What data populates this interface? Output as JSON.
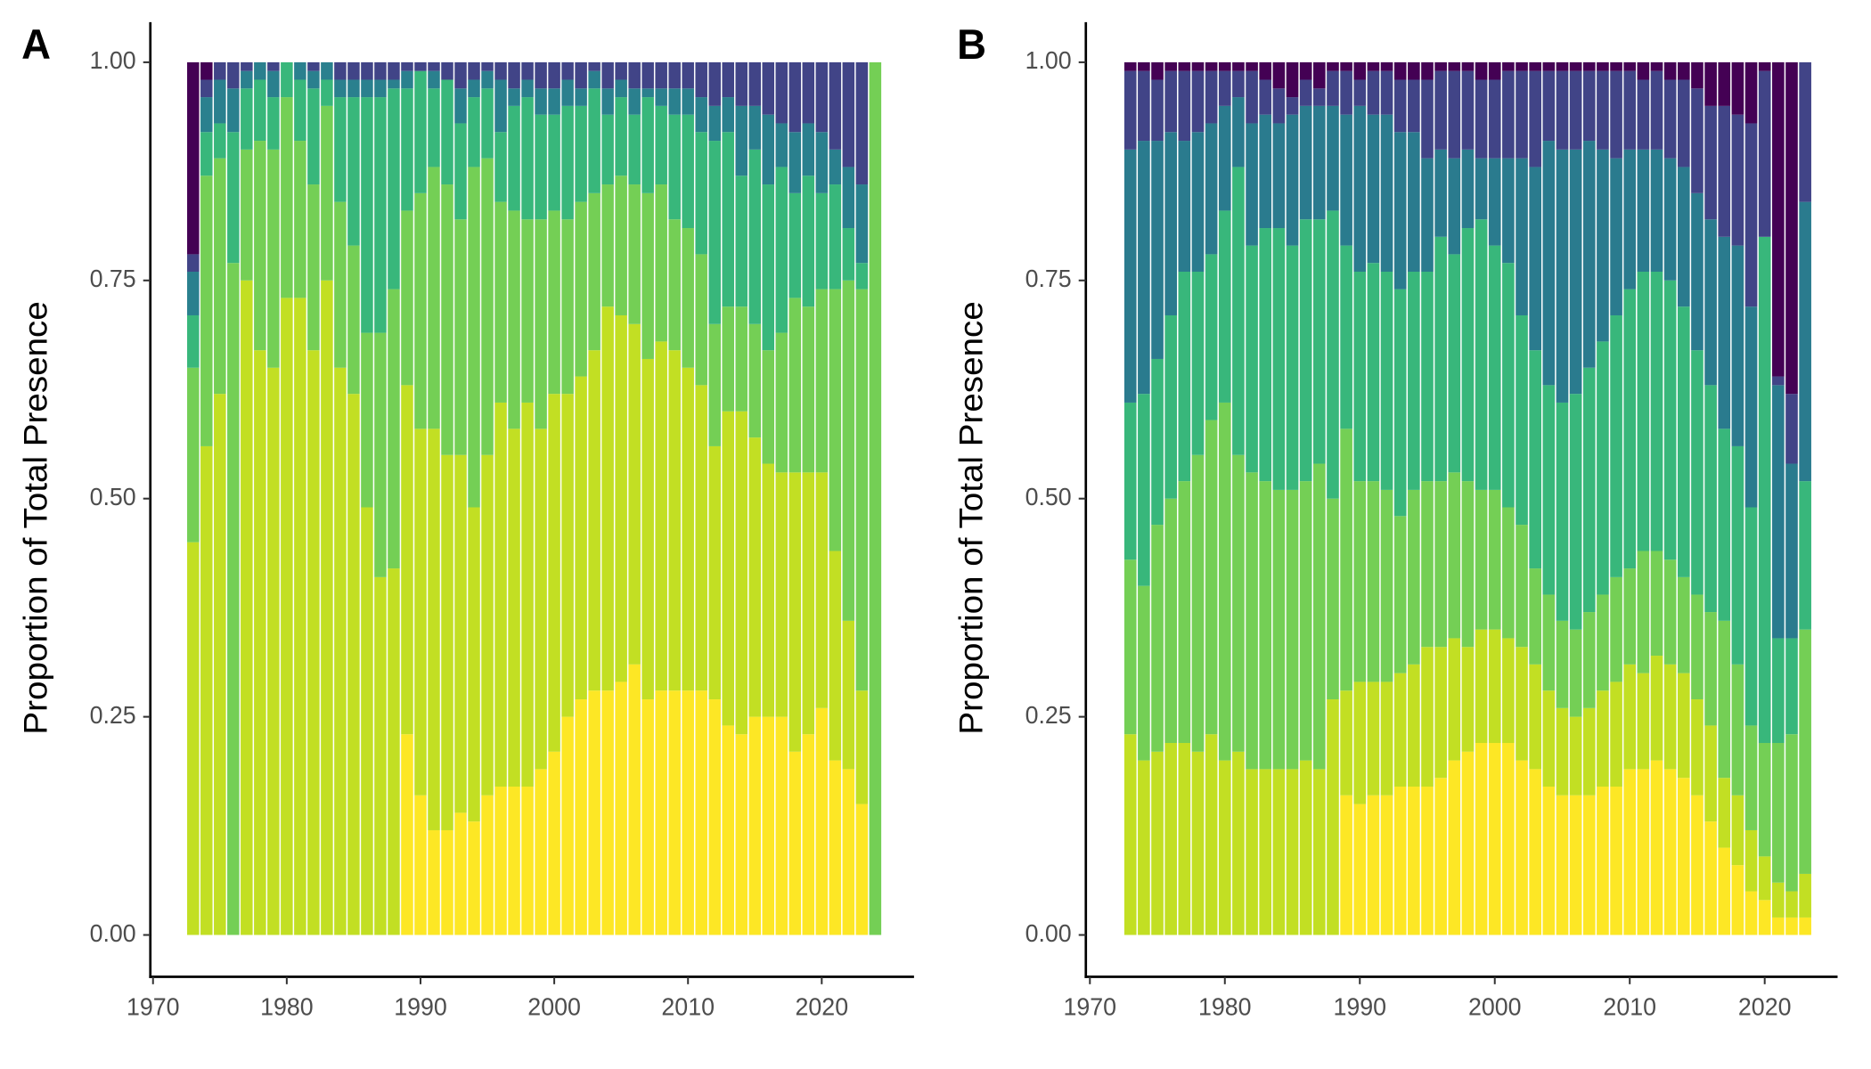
{
  "chart_data": [
    {
      "type": "bar",
      "stacked": true,
      "panel_label": "A",
      "ylabel": "Proportion of Total Presence",
      "x": [
        1973,
        1974,
        1975,
        1976,
        1977,
        1978,
        1979,
        1980,
        1981,
        1982,
        1983,
        1984,
        1985,
        1986,
        1987,
        1988,
        1989,
        1990,
        1991,
        1992,
        1993,
        1994,
        1995,
        1996,
        1997,
        1998,
        1999,
        2000,
        2001,
        2002,
        2003,
        2004,
        2005,
        2006,
        2007,
        2008,
        2009,
        2010,
        2011,
        2012,
        2013,
        2014,
        2015,
        2016,
        2017,
        2018,
        2019,
        2020,
        2021,
        2022,
        2023,
        2024
      ],
      "series": [
        {
          "color": "#FDE725",
          "values": [
            0,
            0,
            0,
            0,
            0,
            0,
            0,
            0,
            0,
            0,
            0,
            0,
            0,
            0,
            0,
            0,
            0.23,
            0.16,
            0.12,
            0.12,
            0.14,
            0.13,
            0.16,
            0.17,
            0.17,
            0.17,
            0.19,
            0.21,
            0.25,
            0.27,
            0.28,
            0.28,
            0.29,
            0.31,
            0.27,
            0.28,
            0.28,
            0.28,
            0.28,
            0.27,
            0.24,
            0.23,
            0.25,
            0.25,
            0.25,
            0.21,
            0.23,
            0.26,
            0.2,
            0.19,
            0.15,
            0
          ]
        },
        {
          "color": "#C2DF23",
          "values": [
            0.45,
            0.56,
            0.62,
            0,
            0.75,
            0.67,
            0.65,
            0.73,
            0.73,
            0.67,
            0.75,
            0.65,
            0.62,
            0.49,
            0.41,
            0.42,
            0.4,
            0.42,
            0.46,
            0.43,
            0.41,
            0.36,
            0.39,
            0.44,
            0.41,
            0.44,
            0.39,
            0.41,
            0.37,
            0.37,
            0.39,
            0.44,
            0.42,
            0.39,
            0.39,
            0.4,
            0.39,
            0.37,
            0.35,
            0.29,
            0.36,
            0.37,
            0.32,
            0.29,
            0.28,
            0.32,
            0.3,
            0.27,
            0.24,
            0.17,
            0.13,
            0
          ]
        },
        {
          "color": "#74CF55",
          "values": [
            0.2,
            0.31,
            0.27,
            0.77,
            0.15,
            0.24,
            0.25,
            0.23,
            0.18,
            0.19,
            0.2,
            0.19,
            0.17,
            0.2,
            0.28,
            0.32,
            0.2,
            0.27,
            0.3,
            0.31,
            0.27,
            0.39,
            0.34,
            0.23,
            0.25,
            0.21,
            0.24,
            0.21,
            0.2,
            0.2,
            0.18,
            0.14,
            0.16,
            0.16,
            0.19,
            0.18,
            0.15,
            0.16,
            0.15,
            0.14,
            0.12,
            0.12,
            0.13,
            0.13,
            0.16,
            0.2,
            0.19,
            0.21,
            0.3,
            0.39,
            0.46,
            1
          ]
        },
        {
          "color": "#38B77B",
          "values": [
            0.06,
            0.05,
            0.04,
            0.15,
            0.07,
            0.07,
            0.06,
            0.04,
            0.07,
            0.11,
            0.03,
            0.12,
            0.17,
            0.27,
            0.27,
            0.23,
            0.14,
            0.14,
            0.09,
            0.12,
            0.11,
            0.08,
            0.08,
            0.08,
            0.12,
            0.14,
            0.12,
            0.11,
            0.13,
            0.11,
            0.12,
            0.08,
            0.09,
            0.08,
            0.11,
            0.09,
            0.12,
            0.13,
            0.14,
            0.21,
            0.2,
            0.15,
            0.2,
            0.19,
            0.19,
            0.12,
            0.15,
            0.11,
            0.12,
            0.06,
            0.03,
            0
          ]
        },
        {
          "color": "#2A808E",
          "values": [
            0.05,
            0.04,
            0.05,
            0.05,
            0.02,
            0.02,
            0.03,
            0,
            0.02,
            0.02,
            0.02,
            0.02,
            0.02,
            0.02,
            0.02,
            0.01,
            0.02,
            0,
            0.02,
            0,
            0.04,
            0.02,
            0.02,
            0.06,
            0.02,
            0.02,
            0.03,
            0.03,
            0.03,
            0.02,
            0.02,
            0.03,
            0.02,
            0.03,
            0.01,
            0.02,
            0.03,
            0.03,
            0.04,
            0.04,
            0.04,
            0.08,
            0.05,
            0.08,
            0.05,
            0.07,
            0.06,
            0.07,
            0.04,
            0.07,
            0.09,
            0
          ]
        },
        {
          "color": "#414487",
          "values": [
            0.02,
            0.02,
            0.02,
            0.03,
            0.01,
            0,
            0.01,
            0,
            0,
            0.01,
            0,
            0.02,
            0.02,
            0.02,
            0.02,
            0.02,
            0.01,
            0.01,
            0.01,
            0.02,
            0.03,
            0.02,
            0.01,
            0.02,
            0.03,
            0.02,
            0.03,
            0.03,
            0.02,
            0.03,
            0.01,
            0.03,
            0.02,
            0.03,
            0.03,
            0.03,
            0.03,
            0.03,
            0.04,
            0.05,
            0.04,
            0.05,
            0.05,
            0.06,
            0.07,
            0.08,
            0.07,
            0.08,
            0.1,
            0.12,
            0.14,
            0
          ]
        },
        {
          "color": "#440154",
          "values": [
            0.22,
            0.02,
            0,
            0,
            0,
            0,
            0,
            0,
            0,
            0,
            0,
            0,
            0,
            0,
            0,
            0,
            0,
            0,
            0,
            0,
            0,
            0,
            0,
            0,
            0,
            0,
            0,
            0,
            0,
            0,
            0,
            0,
            0,
            0,
            0,
            0,
            0,
            0,
            0,
            0,
            0,
            0,
            0,
            0,
            0,
            0,
            0,
            0,
            0,
            0,
            0,
            0
          ]
        }
      ],
      "xlim": [
        1969.8,
        2026.9
      ],
      "xticks": [
        1970,
        1980,
        1990,
        2000,
        2010,
        2020
      ],
      "ylim": [
        -0.048,
        1.046
      ],
      "yticks": [
        {
          "value": 0,
          "label": "0.00"
        },
        {
          "value": 0.25,
          "label": "0.25"
        },
        {
          "value": 0.5,
          "label": "0.50"
        },
        {
          "value": 0.75,
          "label": "0.75"
        },
        {
          "value": 1,
          "label": "1.00"
        }
      ]
    },
    {
      "type": "bar",
      "stacked": true,
      "panel_label": "B",
      "ylabel": "Proportion of Total Presence",
      "x": [
        1973,
        1974,
        1975,
        1976,
        1977,
        1978,
        1979,
        1980,
        1981,
        1982,
        1983,
        1984,
        1985,
        1986,
        1987,
        1988,
        1989,
        1990,
        1991,
        1992,
        1993,
        1994,
        1995,
        1996,
        1997,
        1998,
        1999,
        2000,
        2001,
        2002,
        2003,
        2004,
        2005,
        2006,
        2007,
        2008,
        2009,
        2010,
        2011,
        2012,
        2013,
        2014,
        2015,
        2016,
        2017,
        2018,
        2019,
        2020,
        2021,
        2022,
        2023
      ],
      "series": [
        {
          "color": "#FDE725",
          "values": [
            0,
            0,
            0,
            0,
            0,
            0,
            0,
            0,
            0,
            0,
            0,
            0,
            0,
            0,
            0,
            0,
            0.16,
            0.15,
            0.16,
            0.16,
            0.17,
            0.17,
            0.17,
            0.18,
            0.2,
            0.21,
            0.22,
            0.22,
            0.22,
            0.2,
            0.19,
            0.17,
            0.16,
            0.16,
            0.16,
            0.17,
            0.17,
            0.19,
            0.19,
            0.2,
            0.19,
            0.18,
            0.16,
            0.13,
            0.1,
            0.08,
            0.05,
            0.04,
            0.02,
            0.02,
            0.02
          ]
        },
        {
          "color": "#C2DF23",
          "values": [
            0.23,
            0.2,
            0.21,
            0.22,
            0.22,
            0.21,
            0.23,
            0.2,
            0.21,
            0.19,
            0.19,
            0.19,
            0.19,
            0.2,
            0.19,
            0.27,
            0.12,
            0.14,
            0.13,
            0.13,
            0.13,
            0.14,
            0.16,
            0.15,
            0.14,
            0.12,
            0.13,
            0.13,
            0.12,
            0.13,
            0.12,
            0.11,
            0.1,
            0.09,
            0.1,
            0.11,
            0.12,
            0.12,
            0.11,
            0.12,
            0.12,
            0.12,
            0.11,
            0.11,
            0.08,
            0.08,
            0.07,
            0.05,
            0.04,
            0.03,
            0.05
          ]
        },
        {
          "color": "#74CF55",
          "values": [
            0.2,
            0.2,
            0.26,
            0.28,
            0.3,
            0.34,
            0.36,
            0.41,
            0.34,
            0.34,
            0.33,
            0.32,
            0.32,
            0.32,
            0.35,
            0.23,
            0.3,
            0.23,
            0.23,
            0.22,
            0.18,
            0.2,
            0.19,
            0.19,
            0.19,
            0.19,
            0.16,
            0.16,
            0.15,
            0.14,
            0.11,
            0.11,
            0.1,
            0.1,
            0.11,
            0.11,
            0.12,
            0.11,
            0.14,
            0.12,
            0.12,
            0.11,
            0.12,
            0.13,
            0.18,
            0.15,
            0.12,
            0.13,
            0.16,
            0.18,
            0.28
          ]
        },
        {
          "color": "#38B77B",
          "values": [
            0.18,
            0.22,
            0.19,
            0.21,
            0.24,
            0.21,
            0.19,
            0.22,
            0.33,
            0.26,
            0.29,
            0.3,
            0.28,
            0.3,
            0.28,
            0.33,
            0.21,
            0.24,
            0.25,
            0.25,
            0.26,
            0.25,
            0.24,
            0.28,
            0.25,
            0.29,
            0.31,
            0.28,
            0.28,
            0.24,
            0.25,
            0.24,
            0.25,
            0.27,
            0.28,
            0.29,
            0.3,
            0.32,
            0.32,
            0.32,
            0.32,
            0.31,
            0.28,
            0.26,
            0.22,
            0.25,
            0.25,
            0.58,
            0.12,
            0.11,
            0.17
          ]
        },
        {
          "color": "#2A7B8E",
          "values": [
            0.29,
            0.29,
            0.25,
            0.21,
            0.15,
            0.16,
            0.15,
            0.12,
            0.08,
            0.14,
            0.13,
            0.12,
            0.15,
            0.13,
            0.13,
            0.12,
            0.15,
            0.19,
            0.17,
            0.18,
            0.18,
            0.16,
            0.13,
            0.1,
            0.11,
            0.09,
            0.07,
            0.1,
            0.12,
            0.18,
            0.21,
            0.28,
            0.29,
            0.28,
            0.26,
            0.22,
            0.18,
            0.16,
            0.14,
            0.14,
            0.14,
            0.16,
            0.18,
            0.19,
            0.22,
            0.23,
            0.23,
            0,
            0.29,
            0.2,
            0.32
          ]
        },
        {
          "color": "#414487",
          "values": [
            0.09,
            0.08,
            0.07,
            0.07,
            0.08,
            0.07,
            0.06,
            0.04,
            0.03,
            0.06,
            0.04,
            0.04,
            0.02,
            0.03,
            0.02,
            0.04,
            0.05,
            0.03,
            0.05,
            0.05,
            0.06,
            0.06,
            0.09,
            0.09,
            0.1,
            0.09,
            0.09,
            0.09,
            0.1,
            0.1,
            0.11,
            0.08,
            0.09,
            0.09,
            0.08,
            0.09,
            0.1,
            0.09,
            0.08,
            0.09,
            0.09,
            0.1,
            0.12,
            0.13,
            0.15,
            0.15,
            0.21,
            0.19,
            0.01,
            0.08,
            0.16
          ]
        },
        {
          "color": "#440154",
          "values": [
            0.01,
            0.01,
            0.02,
            0.01,
            0.01,
            0.01,
            0.01,
            0.01,
            0.01,
            0.01,
            0.02,
            0.03,
            0.04,
            0.02,
            0.03,
            0.01,
            0.01,
            0.02,
            0.01,
            0.01,
            0.02,
            0.02,
            0.02,
            0.01,
            0.01,
            0.01,
            0.02,
            0.02,
            0.01,
            0.01,
            0.01,
            0.01,
            0.01,
            0.01,
            0.01,
            0.01,
            0.01,
            0.01,
            0.02,
            0.01,
            0.02,
            0.02,
            0.03,
            0.05,
            0.05,
            0.06,
            0.07,
            0.01,
            0.36,
            0.38,
            0
          ]
        }
      ],
      "xlim": [
        1969.7,
        2025.4
      ],
      "xticks": [
        1970,
        1980,
        1990,
        2000,
        2010,
        2020
      ],
      "ylim": [
        -0.048,
        1.046
      ],
      "yticks": [
        {
          "value": 0,
          "label": "0.00"
        },
        {
          "value": 0.25,
          "label": "0.25"
        },
        {
          "value": 0.5,
          "label": "0.50"
        },
        {
          "value": 0.75,
          "label": "0.75"
        },
        {
          "value": 1,
          "label": "1.00"
        }
      ]
    }
  ]
}
